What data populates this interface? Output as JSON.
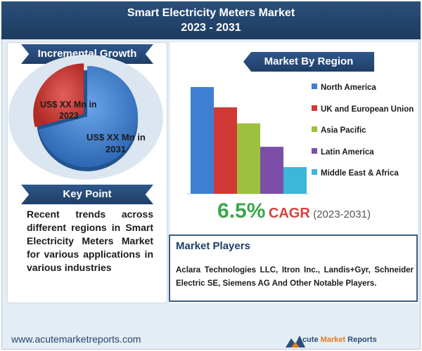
{
  "header": {
    "title_line1": "Smart Electricity Meters Market",
    "title_line2": "2023 - 2031"
  },
  "incremental_growth": {
    "ribbon_label": "Incremental Growth",
    "label_2023": "US$ XX Mn in 2023",
    "label_2023_line1": "US$ XX Mn in",
    "label_2023_line2": "2023",
    "label_2031_line1": "US$ XX Mn in",
    "label_2031_line2": "2031",
    "colors": {
      "y2023": "#d03a35",
      "y2031": "#3d7fd0"
    }
  },
  "key_point": {
    "ribbon_label": "Key Point",
    "text": "Recent trends across different regions in Smart Electricity Meters Market for various applications in various industries"
  },
  "market_by_region": {
    "ribbon_label": "Market By Region"
  },
  "chart_data": {
    "type": "bar",
    "categories": [
      "North America",
      "UK and European Union",
      "Asia Pacific",
      "Latin America",
      "Middle East & Africa"
    ],
    "values": [
      100,
      81,
      66,
      44,
      25
    ],
    "colors": [
      "#3d7fd0",
      "#d03a35",
      "#9dc13f",
      "#7b4ea8",
      "#3cb6d9"
    ],
    "legend_position": "right",
    "grid": false,
    "ylim": [
      0,
      100
    ]
  },
  "cagr": {
    "value": "6.5%",
    "label": "CAGR",
    "years": "(2023-2031)"
  },
  "market_players": {
    "title": "Market Players",
    "text": "Aclara Technologies LLC, Itron Inc., Landis+Gyr, Schneider Electric SE, Siemens AG And Other Notable Players."
  },
  "footer": {
    "url": "www.acutemarketreports.com",
    "brand_part1": "Acute ",
    "brand_part2": "Market ",
    "brand_part3": "Reports"
  }
}
